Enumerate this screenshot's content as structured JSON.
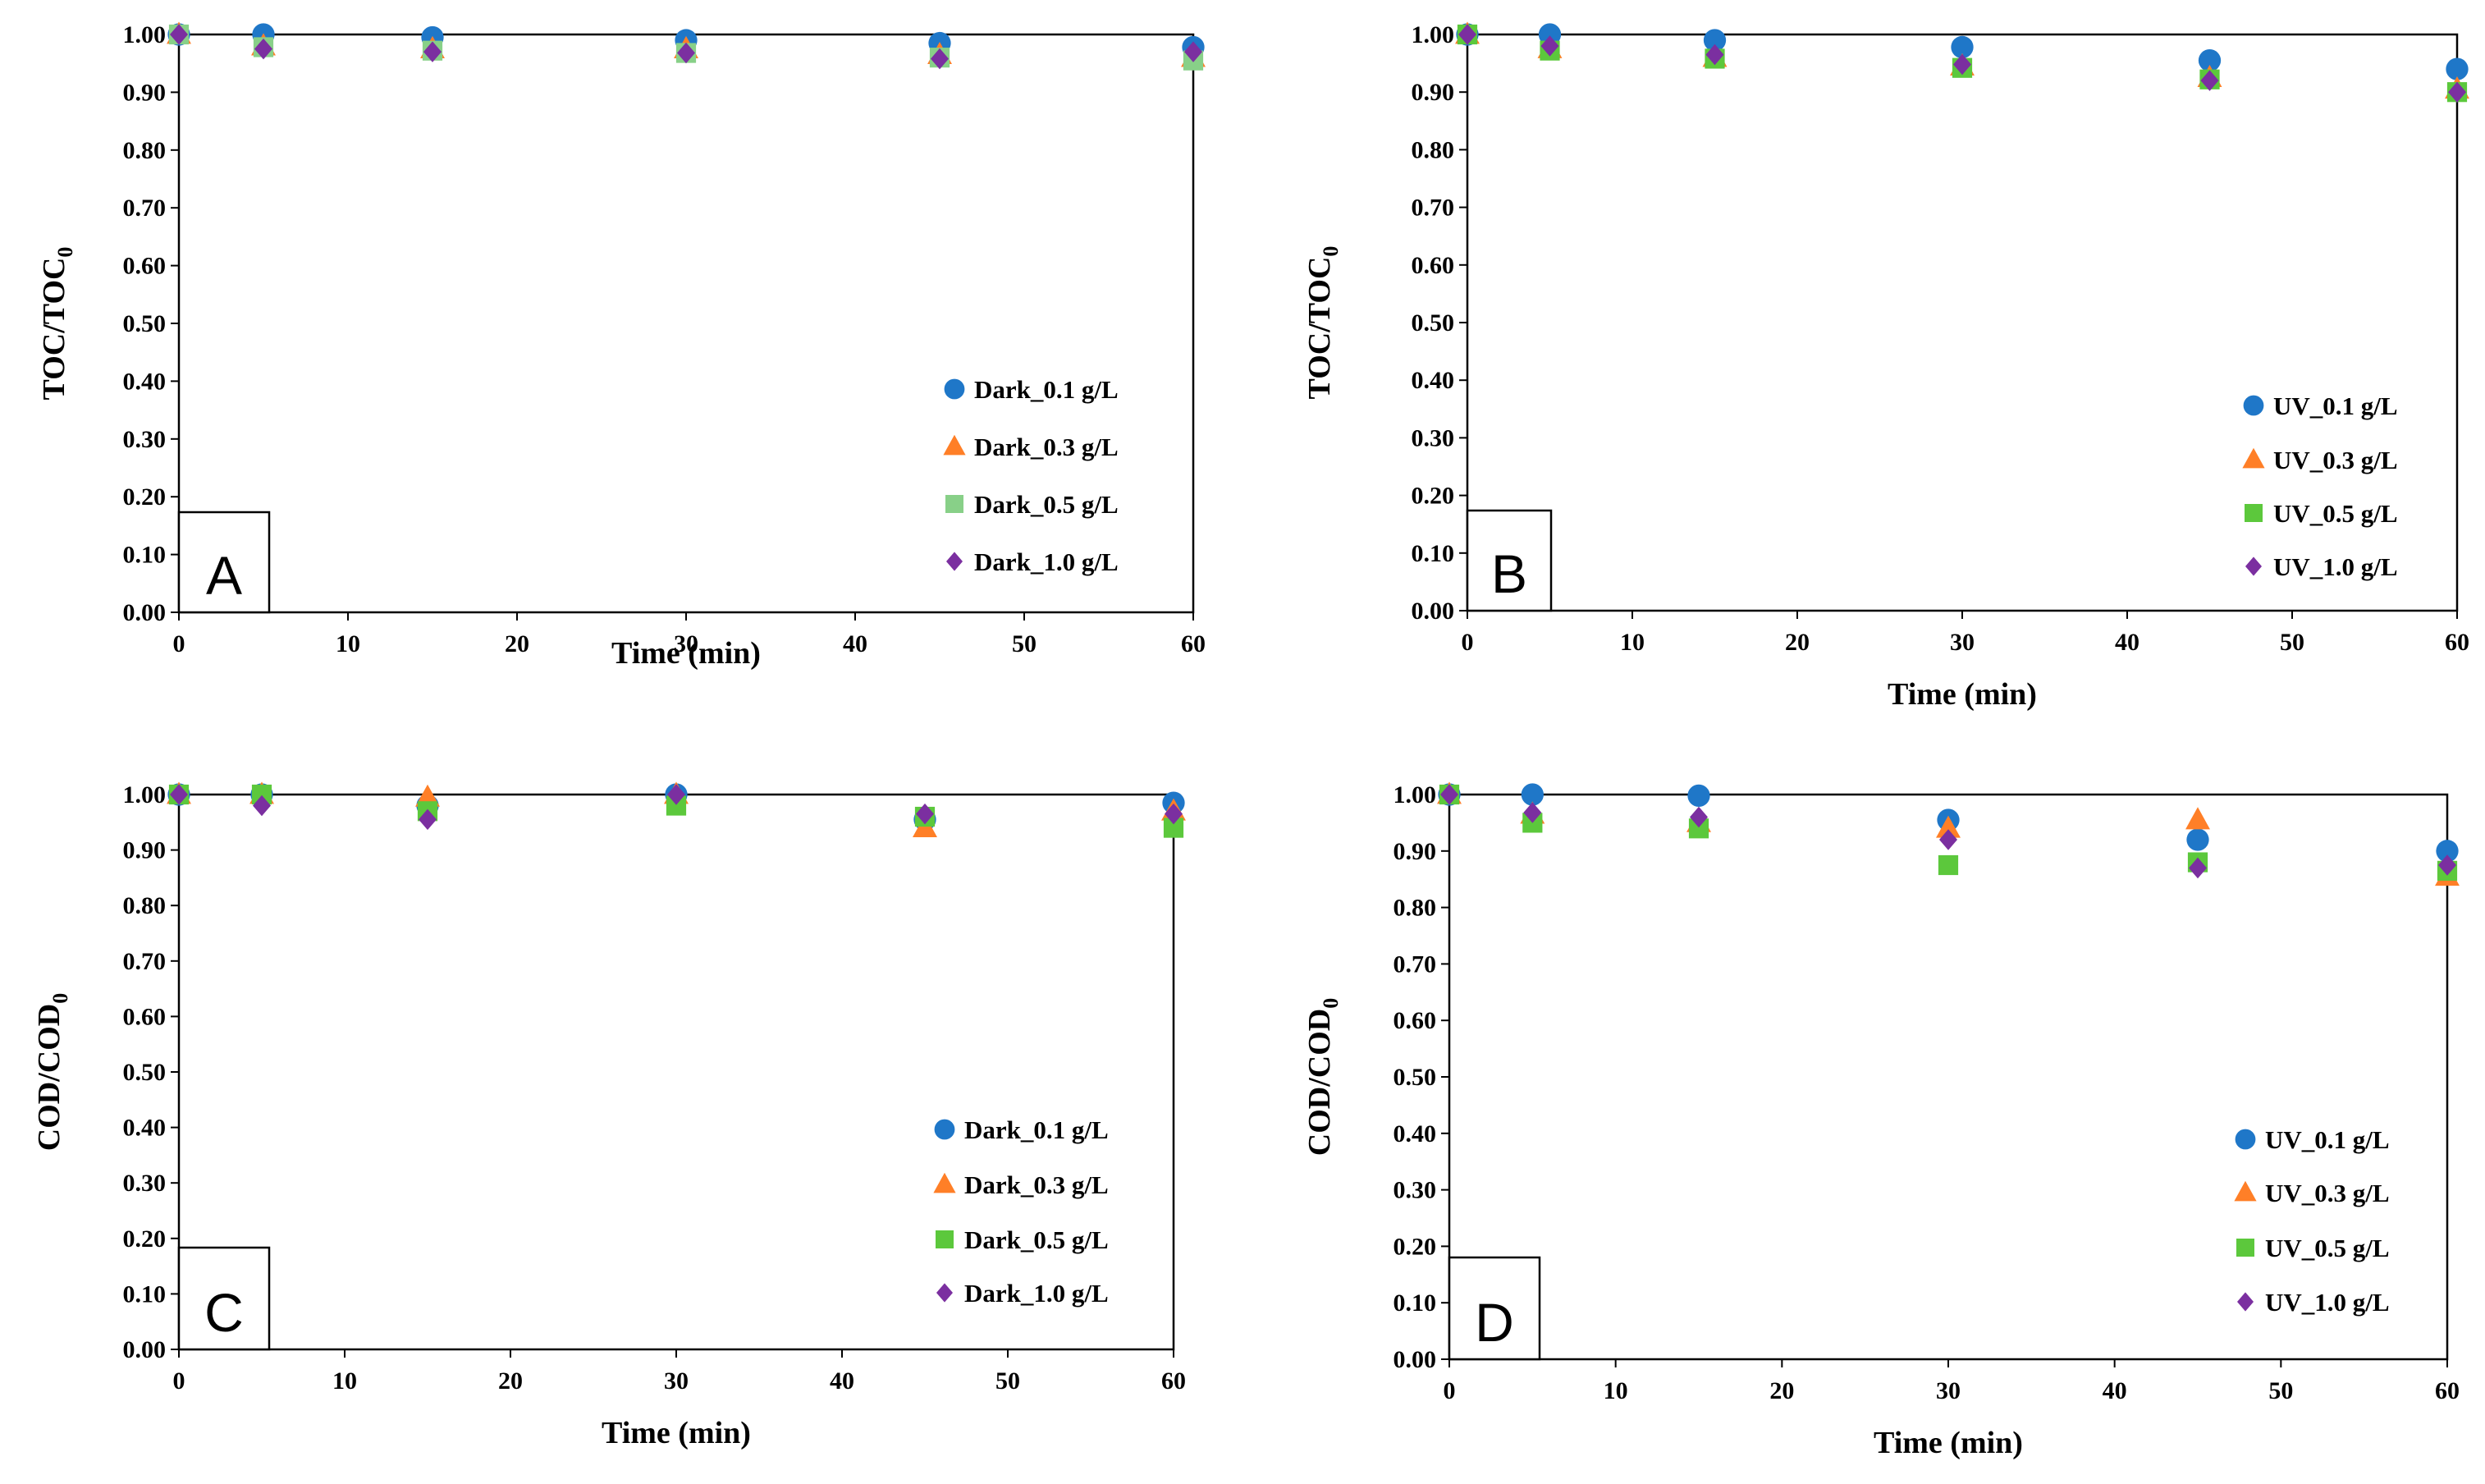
{
  "chart_data": [
    {
      "type": "scatter",
      "panel": "A",
      "xlabel": "Time (min)",
      "ylabel_main": "TOC/TOC",
      "ylabel_sub": "0",
      "xlim": [
        0,
        60
      ],
      "ylim": [
        0,
        1
      ],
      "xticks": [
        "0",
        "10",
        "20",
        "30",
        "40",
        "50",
        "60"
      ],
      "yticks": [
        "0.00",
        "0.10",
        "0.20",
        "0.30",
        "0.40",
        "0.50",
        "0.60",
        "0.70",
        "0.80",
        "0.90",
        "1.00"
      ],
      "legend_position": "lower-right",
      "series": [
        {
          "name": "Dark_0.1 g/L",
          "marker": "circle",
          "color": "#1F77C8",
          "x": [
            0,
            5,
            15,
            30,
            45,
            60
          ],
          "y": [
            1.0,
            1.0,
            0.995,
            0.99,
            0.985,
            0.978
          ]
        },
        {
          "name": "Dark_0.3 g/L",
          "marker": "triangle",
          "color": "#FF7F27",
          "x": [
            0,
            5,
            15,
            30,
            45,
            60
          ],
          "y": [
            1.0,
            0.98,
            0.975,
            0.975,
            0.965,
            0.96
          ]
        },
        {
          "name": "Dark_0.5 g/L",
          "marker": "square",
          "color": "#88D088",
          "x": [
            0,
            5,
            15,
            30,
            45,
            60
          ],
          "y": [
            1.0,
            0.978,
            0.972,
            0.968,
            0.96,
            0.955
          ]
        },
        {
          "name": "Dark_1.0 g/L",
          "marker": "diamond",
          "color": "#7B2FA0",
          "x": [
            0,
            5,
            15,
            30,
            45,
            60
          ],
          "y": [
            1.0,
            0.975,
            0.97,
            0.968,
            0.958,
            0.97
          ]
        }
      ]
    },
    {
      "type": "scatter",
      "panel": "B",
      "xlabel": "Time (min)",
      "ylabel_main": "TOC/TOC",
      "ylabel_sub": "0",
      "xlim": [
        0,
        60
      ],
      "ylim": [
        0,
        1
      ],
      "xticks": [
        "0",
        "10",
        "20",
        "30",
        "40",
        "50",
        "60"
      ],
      "yticks": [
        "0.00",
        "0.10",
        "0.20",
        "0.30",
        "0.40",
        "0.50",
        "0.60",
        "0.70",
        "0.80",
        "0.90",
        "1.00"
      ],
      "legend_position": "lower-right",
      "series": [
        {
          "name": "UV_0.1 g/L",
          "marker": "circle",
          "color": "#1F77C8",
          "x": [
            0,
            5,
            15,
            30,
            45,
            60
          ],
          "y": [
            1.0,
            1.0,
            0.99,
            0.978,
            0.955,
            0.94
          ]
        },
        {
          "name": "UV_0.3 g/L",
          "marker": "triangle",
          "color": "#FF7F27",
          "x": [
            0,
            5,
            15,
            30,
            45,
            60
          ],
          "y": [
            1.0,
            0.975,
            0.96,
            0.945,
            0.925,
            0.905
          ]
        },
        {
          "name": "UV_0.5 g/L",
          "marker": "square",
          "color": "#5CC83C",
          "x": [
            0,
            5,
            15,
            30,
            45,
            60
          ],
          "y": [
            1.0,
            0.972,
            0.958,
            0.942,
            0.922,
            0.9
          ]
        },
        {
          "name": "UV_1.0 g/L",
          "marker": "diamond",
          "color": "#7B2FA0",
          "x": [
            0,
            5,
            15,
            30,
            45,
            60
          ],
          "y": [
            1.0,
            0.98,
            0.965,
            0.948,
            0.92,
            0.9
          ]
        }
      ]
    },
    {
      "type": "scatter",
      "panel": "C",
      "xlabel": "Time (min)",
      "ylabel_main": "COD/COD",
      "ylabel_sub": "0",
      "xlim": [
        0,
        60
      ],
      "ylim": [
        0,
        1
      ],
      "xticks": [
        "0",
        "10",
        "20",
        "30",
        "40",
        "50",
        "60"
      ],
      "yticks": [
        "0.00",
        "0.10",
        "0.20",
        "0.30",
        "0.40",
        "0.50",
        "0.60",
        "0.70",
        "0.80",
        "0.90",
        "1.00"
      ],
      "legend_position": "lower-right",
      "series": [
        {
          "name": "Dark_0.1 g/L",
          "marker": "circle",
          "color": "#1F77C8",
          "x": [
            0,
            5,
            15,
            30,
            45,
            60
          ],
          "y": [
            1.0,
            1.0,
            0.98,
            1.0,
            0.955,
            0.985
          ]
        },
        {
          "name": "Dark_0.3 g/L",
          "marker": "triangle",
          "color": "#FF7F27",
          "x": [
            0,
            5,
            15,
            30,
            45,
            60
          ],
          "y": [
            1.0,
            1.0,
            0.995,
            1.0,
            0.94,
            0.97
          ]
        },
        {
          "name": "Dark_0.5 g/L",
          "marker": "square",
          "color": "#5CC83C",
          "x": [
            0,
            5,
            15,
            30,
            45,
            60
          ],
          "y": [
            1.0,
            1.0,
            0.97,
            0.98,
            0.96,
            0.94
          ]
        },
        {
          "name": "Dark_1.0 g/L",
          "marker": "diamond",
          "color": "#7B2FA0",
          "x": [
            0,
            5,
            15,
            30,
            45,
            60
          ],
          "y": [
            1.0,
            0.98,
            0.955,
            1.0,
            0.965,
            0.965
          ]
        }
      ]
    },
    {
      "type": "scatter",
      "panel": "D",
      "xlabel": "Time (min)",
      "ylabel_main": "COD/COD",
      "ylabel_sub": "0",
      "xlim": [
        0,
        60
      ],
      "ylim": [
        0,
        1
      ],
      "xticks": [
        "0",
        "10",
        "20",
        "30",
        "40",
        "50",
        "60"
      ],
      "yticks": [
        "0.00",
        "0.10",
        "0.20",
        "0.30",
        "0.40",
        "0.50",
        "0.60",
        "0.70",
        "0.80",
        "0.90",
        "1.00"
      ],
      "legend_position": "lower-right",
      "series": [
        {
          "name": "UV_0.1 g/L",
          "marker": "circle",
          "color": "#1F77C8",
          "x": [
            0,
            5,
            15,
            30,
            45,
            60
          ],
          "y": [
            1.0,
            1.0,
            0.998,
            0.955,
            0.92,
            0.9
          ]
        },
        {
          "name": "UV_0.3 g/L",
          "marker": "triangle",
          "color": "#FF7F27",
          "x": [
            0,
            5,
            15,
            30,
            45,
            60
          ],
          "y": [
            1.0,
            0.965,
            0.95,
            0.94,
            0.955,
            0.855
          ]
        },
        {
          "name": "UV_0.5 g/L",
          "marker": "square",
          "color": "#5CC83C",
          "x": [
            0,
            5,
            15,
            30,
            45,
            60
          ],
          "y": [
            1.0,
            0.95,
            0.94,
            0.875,
            0.88,
            0.865
          ]
        },
        {
          "name": "UV_1.0 g/L",
          "marker": "diamond",
          "color": "#7B2FA0",
          "x": [
            0,
            5,
            15,
            30,
            45,
            60
          ],
          "y": [
            1.0,
            0.968,
            0.96,
            0.92,
            0.87,
            0.875
          ]
        }
      ]
    }
  ]
}
